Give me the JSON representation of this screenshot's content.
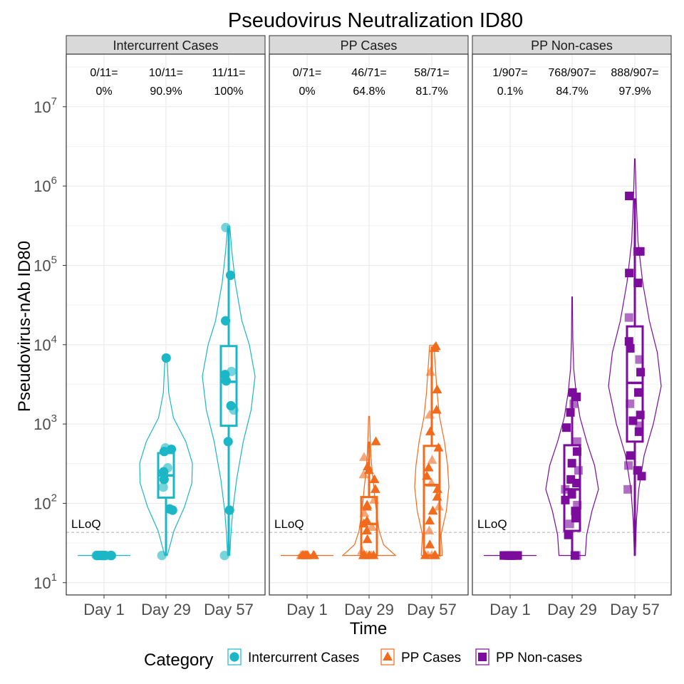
{
  "chart_data": {
    "type": "violin-box",
    "title": "Pseudovirus Neutralization ID80",
    "xlabel": "Time",
    "ylabel": "Pseudovirus-nAb ID80",
    "y_scale": "log10",
    "ylim": [
      7,
      46000000
    ],
    "y_ticks": [
      {
        "value": 10,
        "base": "10",
        "exp": "1"
      },
      {
        "value": 100,
        "base": "10",
        "exp": "2"
      },
      {
        "value": 1000,
        "base": "10",
        "exp": "3"
      },
      {
        "value": 10000,
        "base": "10",
        "exp": "4"
      },
      {
        "value": 100000,
        "base": "10",
        "exp": "5"
      },
      {
        "value": 1000000,
        "base": "10",
        "exp": "6"
      },
      {
        "value": 10000000,
        "base": "10",
        "exp": "7"
      }
    ],
    "categories": [
      "Day 1",
      "Day 29",
      "Day 57"
    ],
    "lloq": {
      "value": 43,
      "label": "LLoQ"
    },
    "grid": true,
    "legend": {
      "title": "Category",
      "position": "bottom",
      "items": [
        {
          "label": "Intercurrent Cases",
          "color": "#1bb7c6",
          "shape": "circle"
        },
        {
          "label": "PP Cases",
          "color": "#f26b1d",
          "shape": "triangle"
        },
        {
          "label": "PP Non-cases",
          "color": "#7b0c9c",
          "shape": "square"
        }
      ]
    },
    "panels": [
      {
        "name": "Intercurrent Cases",
        "color": "#1bb7c6",
        "shape": "circle",
        "groups": [
          {
            "x": "Day 1",
            "ratio": "0/11=",
            "pct": "0%",
            "box": {
              "q1": 22,
              "median": 22,
              "q3": 22,
              "wlo": 22,
              "whi": 22
            },
            "violin": {
              "lo": 22,
              "hi": 22,
              "profile": [
                [
                  22,
                  1
                ]
              ]
            },
            "points": [
              22,
              22,
              22,
              22,
              22,
              22,
              22,
              22,
              22,
              22,
              22
            ]
          },
          {
            "x": "Day 29",
            "ratio": "10/11=",
            "pct": "90.9%",
            "box": {
              "q1": 118,
              "median": 225,
              "q3": 430,
              "wlo": 22,
              "whi": 430
            },
            "violin": {
              "lo": 22,
              "hi": 7000,
              "profile": [
                [
                  22,
                  0.05
                ],
                [
                  45,
                  0.3
                ],
                [
                  90,
                  0.7
                ],
                [
                  180,
                  0.98
                ],
                [
                  320,
                  1
                ],
                [
                  600,
                  0.75
                ],
                [
                  1200,
                  0.28
                ],
                [
                  2500,
                  0.1
                ],
                [
                  5000,
                  0.06
                ],
                [
                  7000,
                  0.03
                ]
              ]
            },
            "points": [
              22,
              82,
              85,
              160,
              200,
              250,
              280,
              450,
              480,
              500,
              6800
            ]
          },
          {
            "x": "Day 57",
            "ratio": "11/11=",
            "pct": "100%",
            "box": {
              "q1": 950,
              "median": 3400,
              "q3": 9600,
              "wlo": 22,
              "whi": 300000
            },
            "violin": {
              "lo": 22,
              "hi": 310000,
              "profile": [
                [
                  22,
                  0.04
                ],
                [
                  40,
                  0.08
                ],
                [
                  80,
                  0.15
                ],
                [
                  200,
                  0.3
                ],
                [
                  600,
                  0.55
                ],
                [
                  1500,
                  0.85
                ],
                [
                  4000,
                  1
                ],
                [
                  10000,
                  0.78
                ],
                [
                  20000,
                  0.5
                ],
                [
                  60000,
                  0.25
                ],
                [
                  150000,
                  0.12
                ],
                [
                  310000,
                  0.04
                ]
              ]
            },
            "points": [
              22,
              82,
              600,
              1500,
              1700,
              4200,
              4600,
              20000,
              75000,
              300000,
              3500
            ]
          }
        ]
      },
      {
        "name": "PP Cases",
        "color": "#f26b1d",
        "shape": "triangle",
        "groups": [
          {
            "x": "Day 1",
            "ratio": "0/71=",
            "pct": "0%",
            "box": {
              "q1": 22,
              "median": 22,
              "q3": 22,
              "wlo": 22,
              "whi": 22
            },
            "violin": {
              "lo": 22,
              "hi": 22,
              "profile": [
                [
                  22,
                  1
                ]
              ]
            },
            "points": [
              22,
              22,
              22,
              22,
              22,
              22,
              22,
              22,
              22,
              22,
              22,
              22
            ]
          },
          {
            "x": "Day 29",
            "ratio": "46/71=",
            "pct": "64.8%",
            "box": {
              "q1": 22,
              "median": 55,
              "q3": 120,
              "wlo": 22,
              "whi": 600
            },
            "violin": {
              "lo": 22,
              "hi": 1250,
              "profile": [
                [
                  22,
                  1
                ],
                [
                  30,
                  0.55
                ],
                [
                  45,
                  0.38
                ],
                [
                  70,
                  0.3
                ],
                [
                  100,
                  0.24
                ],
                [
                  160,
                  0.18
                ],
                [
                  250,
                  0.12
                ],
                [
                  400,
                  0.07
                ],
                [
                  700,
                  0.04
                ],
                [
                  1250,
                  0.015
                ]
              ]
            },
            "points": [
              22,
              22,
              22,
              22,
              22,
              22,
              25,
              35,
              45,
              50,
              55,
              60,
              75,
              90,
              95,
              110,
              150,
              200,
              230,
              260,
              290,
              380,
              600
            ]
          },
          {
            "x": "Day 57",
            "ratio": "58/71=",
            "pct": "81.7%",
            "box": {
              "q1": 22,
              "median": 170,
              "q3": 530,
              "wlo": 22,
              "whi": 9500
            },
            "violin": {
              "lo": 22,
              "hi": 9800,
              "profile": [
                [
                  22,
                  0.4
                ],
                [
                  40,
                  0.35
                ],
                [
                  80,
                  0.55
                ],
                [
                  160,
                  0.65
                ],
                [
                  300,
                  0.6
                ],
                [
                  600,
                  0.48
                ],
                [
                  1200,
                  0.3
                ],
                [
                  2500,
                  0.2
                ],
                [
                  5000,
                  0.14
                ],
                [
                  9800,
                  0.08
                ]
              ]
            },
            "points": [
              22,
              22,
              22,
              22,
              22,
              30,
              45,
              60,
              80,
              90,
              120,
              150,
              180,
              220,
              280,
              350,
              500,
              800,
              1300,
              1500,
              2700,
              4500,
              9000,
              9500
            ]
          }
        ]
      },
      {
        "name": "PP Non-cases",
        "color": "#7b0c9c",
        "shape": "square",
        "groups": [
          {
            "x": "Day 1",
            "ratio": "1/907=",
            "pct": "0.1%",
            "box": {
              "q1": 22,
              "median": 22,
              "q3": 22,
              "wlo": 22,
              "whi": 22
            },
            "violin": {
              "lo": 22,
              "hi": 22,
              "profile": [
                [
                  22,
                  1
                ]
              ]
            },
            "points": [
              22,
              22,
              22,
              22,
              22,
              22,
              22,
              22,
              22,
              22,
              22,
              22
            ]
          },
          {
            "x": "Day 29",
            "ratio": "768/907=",
            "pct": "84.7%",
            "box": {
              "q1": 45,
              "median": 150,
              "q3": 540,
              "wlo": 22,
              "whi": 2500
            },
            "violin": {
              "lo": 22,
              "hi": 40000,
              "profile": [
                [
                  22,
                  0.5
                ],
                [
                  40,
                  0.55
                ],
                [
                  80,
                  0.75
                ],
                [
                  150,
                  1
                ],
                [
                  300,
                  0.85
                ],
                [
                  600,
                  0.55
                ],
                [
                  1200,
                  0.3
                ],
                [
                  2500,
                  0.15
                ],
                [
                  5000,
                  0.06
                ],
                [
                  12000,
                  0.025
                ],
                [
                  40000,
                  0.01
                ]
              ]
            },
            "points": [
              22,
              22,
              40,
              55,
              65,
              80,
              95,
              110,
              130,
              150,
              180,
              200,
              260,
              320,
              450,
              600,
              900,
              1400,
              1800,
              2200,
              2500
            ]
          },
          {
            "x": "Day 57",
            "ratio": "888/907=",
            "pct": "97.9%",
            "box": {
              "q1": 600,
              "median": 3300,
              "q3": 17000,
              "wlo": 22,
              "whi": 700000
            },
            "violin": {
              "lo": 22,
              "hi": 2200000,
              "profile": [
                [
                  22,
                  0.02
                ],
                [
                  60,
                  0.06
                ],
                [
                  150,
                  0.15
                ],
                [
                  400,
                  0.35
                ],
                [
                  1000,
                  0.7
                ],
                [
                  3000,
                  1
                ],
                [
                  8000,
                  0.85
                ],
                [
                  20000,
                  0.55
                ],
                [
                  60000,
                  0.3
                ],
                [
                  200000,
                  0.12
                ],
                [
                  700000,
                  0.05
                ],
                [
                  2200000,
                  0.01
                ]
              ]
            },
            "points": [
              150,
              220,
              260,
              300,
              400,
              800,
              950,
              1100,
              1300,
              1800,
              2500,
              4500,
              6500,
              9000,
              11000,
              22000,
              60000,
              80000,
              150000,
              150000,
              750000
            ]
          }
        ]
      }
    ]
  }
}
